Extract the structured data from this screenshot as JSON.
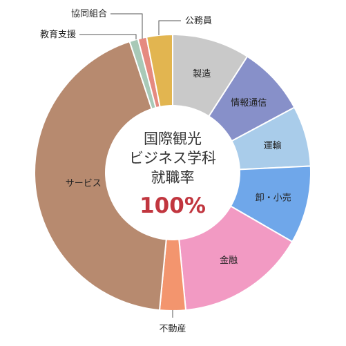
{
  "chart_data": {
    "type": "pie",
    "categories": [
      "製造",
      "情報通信",
      "運輸",
      "卸・小売",
      "金融",
      "不動産",
      "サービス",
      "教育支援",
      "協同組合",
      "公務員"
    ],
    "values": [
      9,
      8,
      7,
      9,
      15,
      3,
      43,
      1,
      1,
      3
    ],
    "colors": [
      "#c9c9c9",
      "#8790c9",
      "#a9ccea",
      "#6fa7ea",
      "#f29ac3",
      "#f3956e",
      "#b78a6f",
      "#a8c9b7",
      "#e58a80",
      "#e2b550"
    ],
    "start_category": "製造",
    "direction": "clockwise",
    "inner_label_categories": [
      "製造",
      "情報通信",
      "運輸",
      "卸・小売",
      "金融",
      "サービス"
    ],
    "outer_label_categories": [
      "不動産",
      "教育支援",
      "協同組合",
      "公務員"
    ],
    "center_title": [
      "国際観光",
      "ビジネス学科",
      "就職率"
    ],
    "center_value": "100%"
  }
}
